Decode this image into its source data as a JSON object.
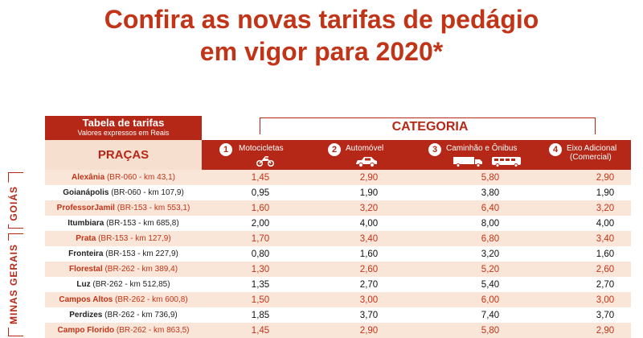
{
  "title": {
    "line1": "Confira as novas tarifas de pedágio",
    "line2": "em vigor para 2020*"
  },
  "table_label": {
    "title": "Tabela de tarifas",
    "subtitle": "Valores expressos em Reais"
  },
  "categoria_label": "CATEGORIA",
  "pracas_label": "PRAÇAS",
  "categories": [
    {
      "number": "1",
      "name": "Motocicletas",
      "icon": "motorcycle-icon"
    },
    {
      "number": "2",
      "name": "Automóvel",
      "icon": "car-icon"
    },
    {
      "number": "3",
      "name": "Caminhão e Ônibus",
      "icon": "truck-bus-icon"
    },
    {
      "number": "4",
      "name": "Eixo Adicional",
      "name2": "(Comercial)",
      "icon": "axle-icon"
    }
  ],
  "regions": {
    "goias": "GOIÁS",
    "minas": "MINAS GERAIS"
  },
  "rows": [
    {
      "name": "Alexânia",
      "km": "(BR-060 - km 43,1)",
      "values": [
        "1,45",
        "2,90",
        "5,80",
        "2,90"
      ]
    },
    {
      "name": "Goianápolis",
      "km": "(BR-060 - km 107,9)",
      "values": [
        "0,95",
        "1,90",
        "3,80",
        "1,90"
      ]
    },
    {
      "name": "ProfessorJamil",
      "km": "(BR-153 - km 553,1)",
      "values": [
        "1,60",
        "3,20",
        "6,40",
        "3,20"
      ]
    },
    {
      "name": "Itumbiara",
      "km": "(BR-153 - km 685,8)",
      "values": [
        "2,00",
        "4,00",
        "8,00",
        "4,00"
      ]
    },
    {
      "name": "Prata",
      "km": "(BR-153 - km 127,9)",
      "values": [
        "1,70",
        "3,40",
        "6,80",
        "3,40"
      ]
    },
    {
      "name": "Fronteira",
      "km": "(BR-153 - km 227,9)",
      "values": [
        "0,80",
        "1,60",
        "3,20",
        "1,60"
      ]
    },
    {
      "name": "Florestal",
      "km": "(BR-262 - km 389,4)",
      "values": [
        "1,30",
        "2,60",
        "5,20",
        "2,60"
      ]
    },
    {
      "name": "Luz",
      "km": "(BR-262 - km 512,85)",
      "values": [
        "1,35",
        "2,70",
        "5,40",
        "2,70"
      ]
    },
    {
      "name": "Campos Altos",
      "km": "(BR-262 - km 600,8)",
      "values": [
        "1,50",
        "3,00",
        "6,00",
        "3,00"
      ]
    },
    {
      "name": "Perdizes",
      "km": "(BR-262 - km 736,9)",
      "values": [
        "1,85",
        "3,70",
        "7,40",
        "3,70"
      ]
    },
    {
      "name": "Campo Florido",
      "km": "(BR-262 - km 863,5)",
      "values": [
        "1,45",
        "2,90",
        "5,80",
        "2,90"
      ]
    }
  ],
  "colors": {
    "accent": "#b52817",
    "title": "#c23418",
    "row_shade": "#f9e6d8"
  }
}
